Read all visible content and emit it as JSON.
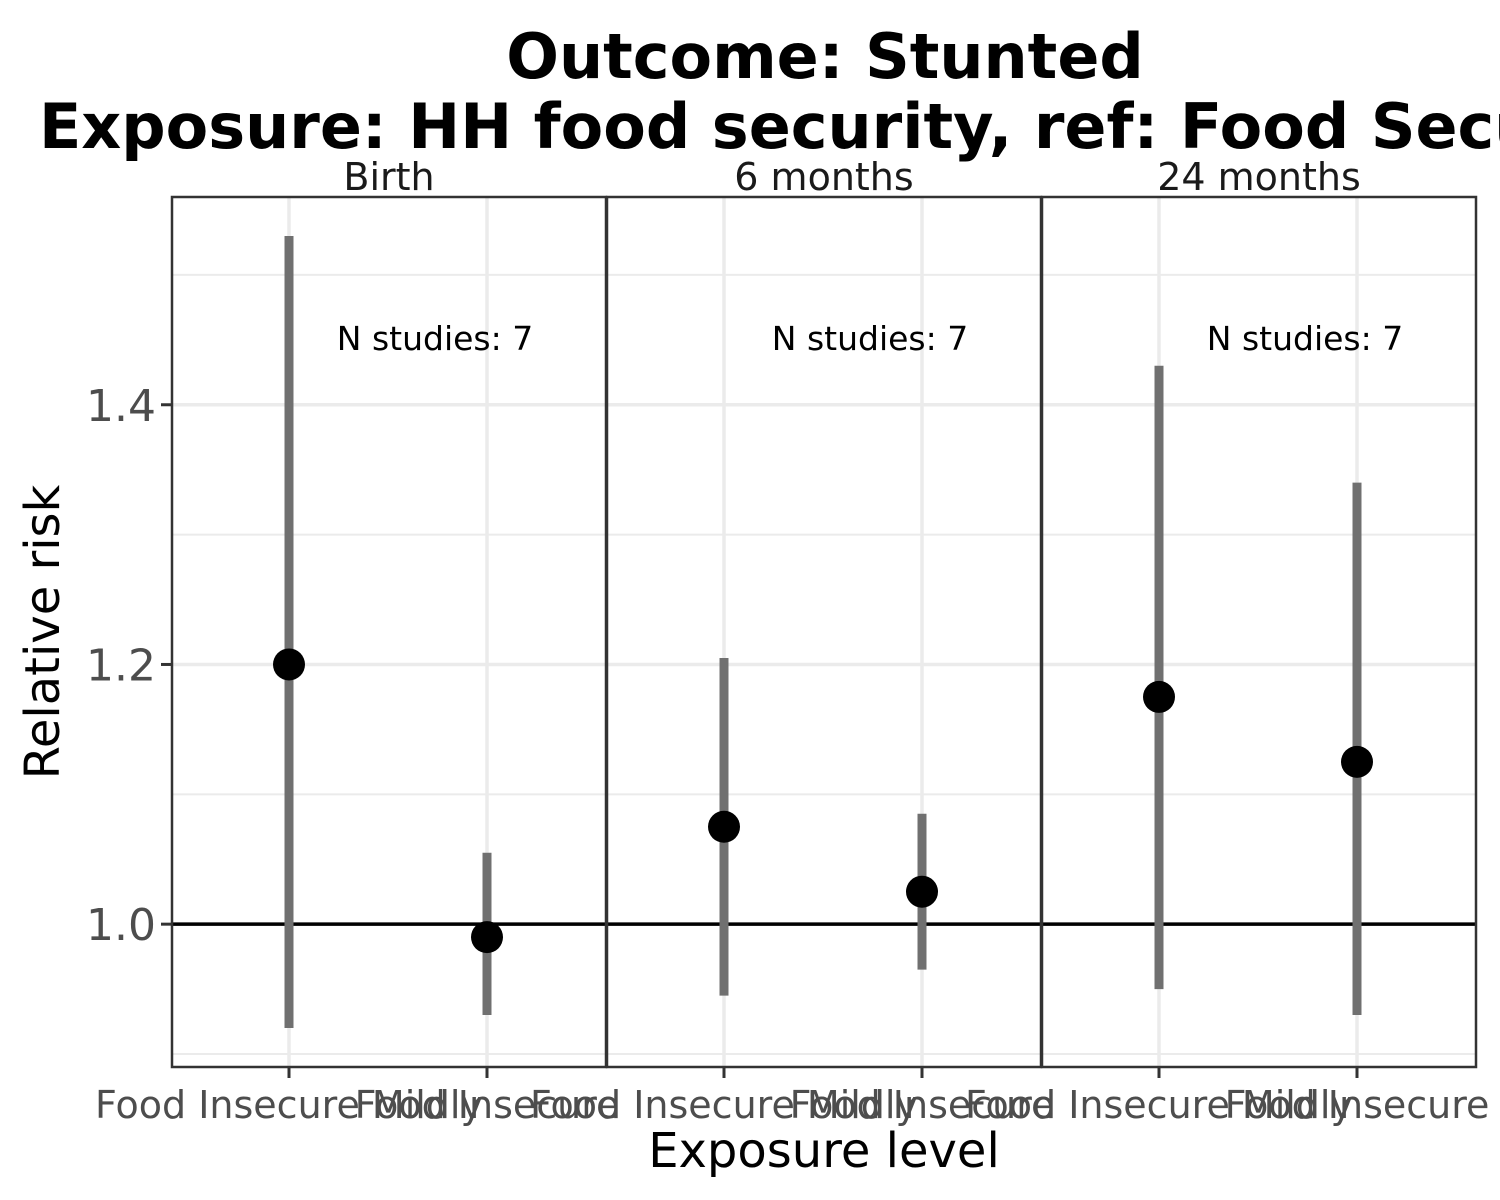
{
  "chart_data": {
    "type": "scatter",
    "title_lines": [
      "Outcome: Stunted",
      "Exposure: HH food security, ref: Food Secure"
    ],
    "xlabel": "Exposure level",
    "ylabel": "Relative risk",
    "ylim": [
      0.89,
      1.56
    ],
    "y_ticks": [
      1.0,
      1.2,
      1.4
    ],
    "y_tick_labels": [
      "1.0",
      "1.2",
      "1.4"
    ],
    "y_minor": [
      1.1,
      1.3,
      1.5,
      0.9
    ],
    "reference_line": 1.0,
    "categories": [
      "Food Insecure Mildly",
      "Food Insecure"
    ],
    "x_tick_labels": [
      "Food Insecure Mildly",
      "Food Insecure"
    ],
    "grid": true,
    "panels": [
      {
        "strip": "Birth",
        "annotation": "N studies: 7",
        "points": [
          {
            "category": "Food Insecure Mildly",
            "estimate": 1.2,
            "lower": 0.92,
            "upper": 1.53
          },
          {
            "category": "Food Insecure",
            "estimate": 0.99,
            "lower": 0.93,
            "upper": 1.055
          }
        ]
      },
      {
        "strip": "6 months",
        "annotation": "N studies: 7",
        "points": [
          {
            "category": "Food Insecure Mildly",
            "estimate": 1.075,
            "lower": 0.945,
            "upper": 1.205
          },
          {
            "category": "Food Insecure",
            "estimate": 1.025,
            "lower": 0.965,
            "upper": 1.085
          }
        ]
      },
      {
        "strip": "24 months",
        "annotation": "N studies: 7",
        "points": [
          {
            "category": "Food Insecure Mildly",
            "estimate": 1.175,
            "lower": 0.95,
            "upper": 1.43
          },
          {
            "category": "Food Insecure",
            "estimate": 1.125,
            "lower": 0.93,
            "upper": 1.34
          }
        ]
      }
    ],
    "colors": {
      "point": "#000000",
      "errorbar": "#707070",
      "refline": "#000000",
      "grid": "#ebebeb",
      "frame": "#333333"
    }
  }
}
